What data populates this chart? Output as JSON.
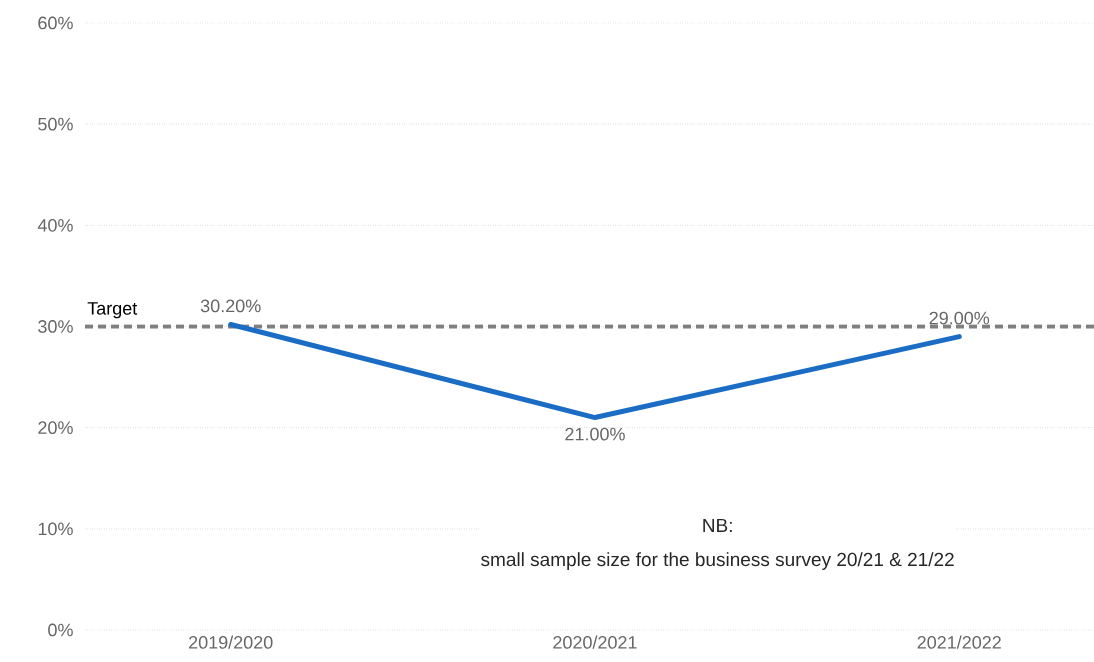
{
  "chart_data": {
    "type": "line",
    "categories": [
      "2019/2020",
      "2020/2021",
      "2021/2022"
    ],
    "values": [
      30.2,
      21,
      29
    ],
    "color": "#1a6cc4",
    "value_labels": [
      "30.20%",
      "21.00%",
      "29.00%"
    ],
    "ylim": [
      0,
      60
    ],
    "yticks": [
      {
        "value": 0,
        "label": "0%"
      },
      {
        "value": 10,
        "label": "10%"
      },
      {
        "value": 20,
        "label": "20%"
      },
      {
        "value": 30,
        "label": "30%"
      },
      {
        "value": 40,
        "label": "40%"
      },
      {
        "value": 50,
        "label": "50%"
      },
      {
        "value": 60,
        "label": "60%"
      }
    ],
    "grid": "y",
    "ref_lines": [
      {
        "axis": "y",
        "value": 30,
        "label": "Target",
        "color": "#7f7f7f",
        "line_style": "dashed"
      }
    ],
    "annotations": [
      "NB:",
      "small sample size for the business survey 20/21 & 21/22"
    ]
  }
}
